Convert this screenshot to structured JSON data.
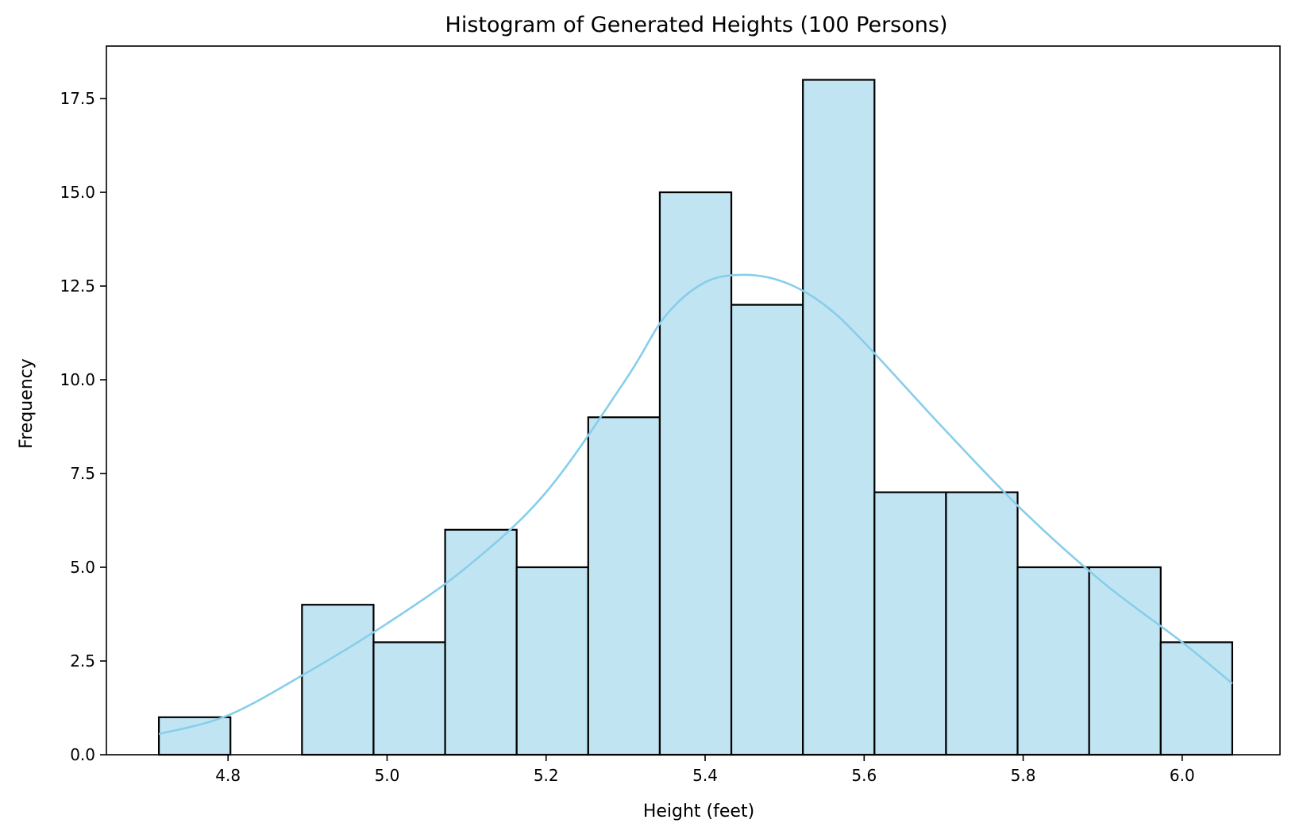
{
  "chart_data": {
    "type": "bar",
    "title": "Histogram of Generated Heights (100 Persons)",
    "xlabel": "Height (feet)",
    "ylabel": "Frequency",
    "xlim": [
      4.647,
      6.123
    ],
    "ylim": [
      0,
      18.9
    ],
    "x_ticks": [
      {
        "value": 4.8,
        "label": "4.8"
      },
      {
        "value": 5.0,
        "label": "5.0"
      },
      {
        "value": 5.2,
        "label": "5.2"
      },
      {
        "value": 5.4,
        "label": "5.4"
      },
      {
        "value": 5.6,
        "label": "5.6"
      },
      {
        "value": 5.8,
        "label": "5.8"
      },
      {
        "value": 6.0,
        "label": "6.0"
      }
    ],
    "y_ticks": [
      {
        "value": 0.0,
        "label": "0.0"
      },
      {
        "value": 2.5,
        "label": "2.5"
      },
      {
        "value": 5.0,
        "label": "5.0"
      },
      {
        "value": 7.5,
        "label": "7.5"
      },
      {
        "value": 10.0,
        "label": "10.0"
      },
      {
        "value": 12.5,
        "label": "12.5"
      },
      {
        "value": 15.0,
        "label": "15.0"
      },
      {
        "value": 17.5,
        "label": "17.5"
      }
    ],
    "bins": [
      {
        "x0": 4.713,
        "x1": 4.803,
        "count": 1
      },
      {
        "x0": 4.803,
        "x1": 4.893,
        "count": 0
      },
      {
        "x0": 4.893,
        "x1": 4.983,
        "count": 4
      },
      {
        "x0": 4.983,
        "x1": 5.073,
        "count": 3
      },
      {
        "x0": 5.073,
        "x1": 5.163,
        "count": 6
      },
      {
        "x0": 5.163,
        "x1": 5.253,
        "count": 5
      },
      {
        "x0": 5.253,
        "x1": 5.343,
        "count": 9
      },
      {
        "x0": 5.343,
        "x1": 5.433,
        "count": 15
      },
      {
        "x0": 5.433,
        "x1": 5.523,
        "count": 12
      },
      {
        "x0": 5.523,
        "x1": 5.613,
        "count": 18
      },
      {
        "x0": 5.613,
        "x1": 5.703,
        "count": 7
      },
      {
        "x0": 5.703,
        "x1": 5.793,
        "count": 7
      },
      {
        "x0": 5.793,
        "x1": 5.883,
        "count": 5
      },
      {
        "x0": 5.883,
        "x1": 5.973,
        "count": 5
      },
      {
        "x0": 5.973,
        "x1": 6.063,
        "count": 3
      }
    ],
    "kde_curve": {
      "x": [
        4.713,
        4.8,
        4.9,
        5.0,
        5.1,
        5.2,
        5.3,
        5.35,
        5.4,
        5.45,
        5.5,
        5.55,
        5.6,
        5.7,
        5.8,
        5.9,
        6.0,
        6.063
      ],
      "y": [
        0.55,
        1.05,
        2.2,
        3.5,
        5.0,
        7.0,
        10.0,
        11.7,
        12.6,
        12.8,
        12.6,
        12.0,
        11.0,
        8.7,
        6.5,
        4.6,
        3.0,
        1.9
      ]
    },
    "colors": {
      "bar_fill": "#c1e4f3",
      "bar_edge": "#000000",
      "kde_line": "#87ceeb",
      "axis": "#000000"
    },
    "grid": false,
    "legend": "none"
  }
}
